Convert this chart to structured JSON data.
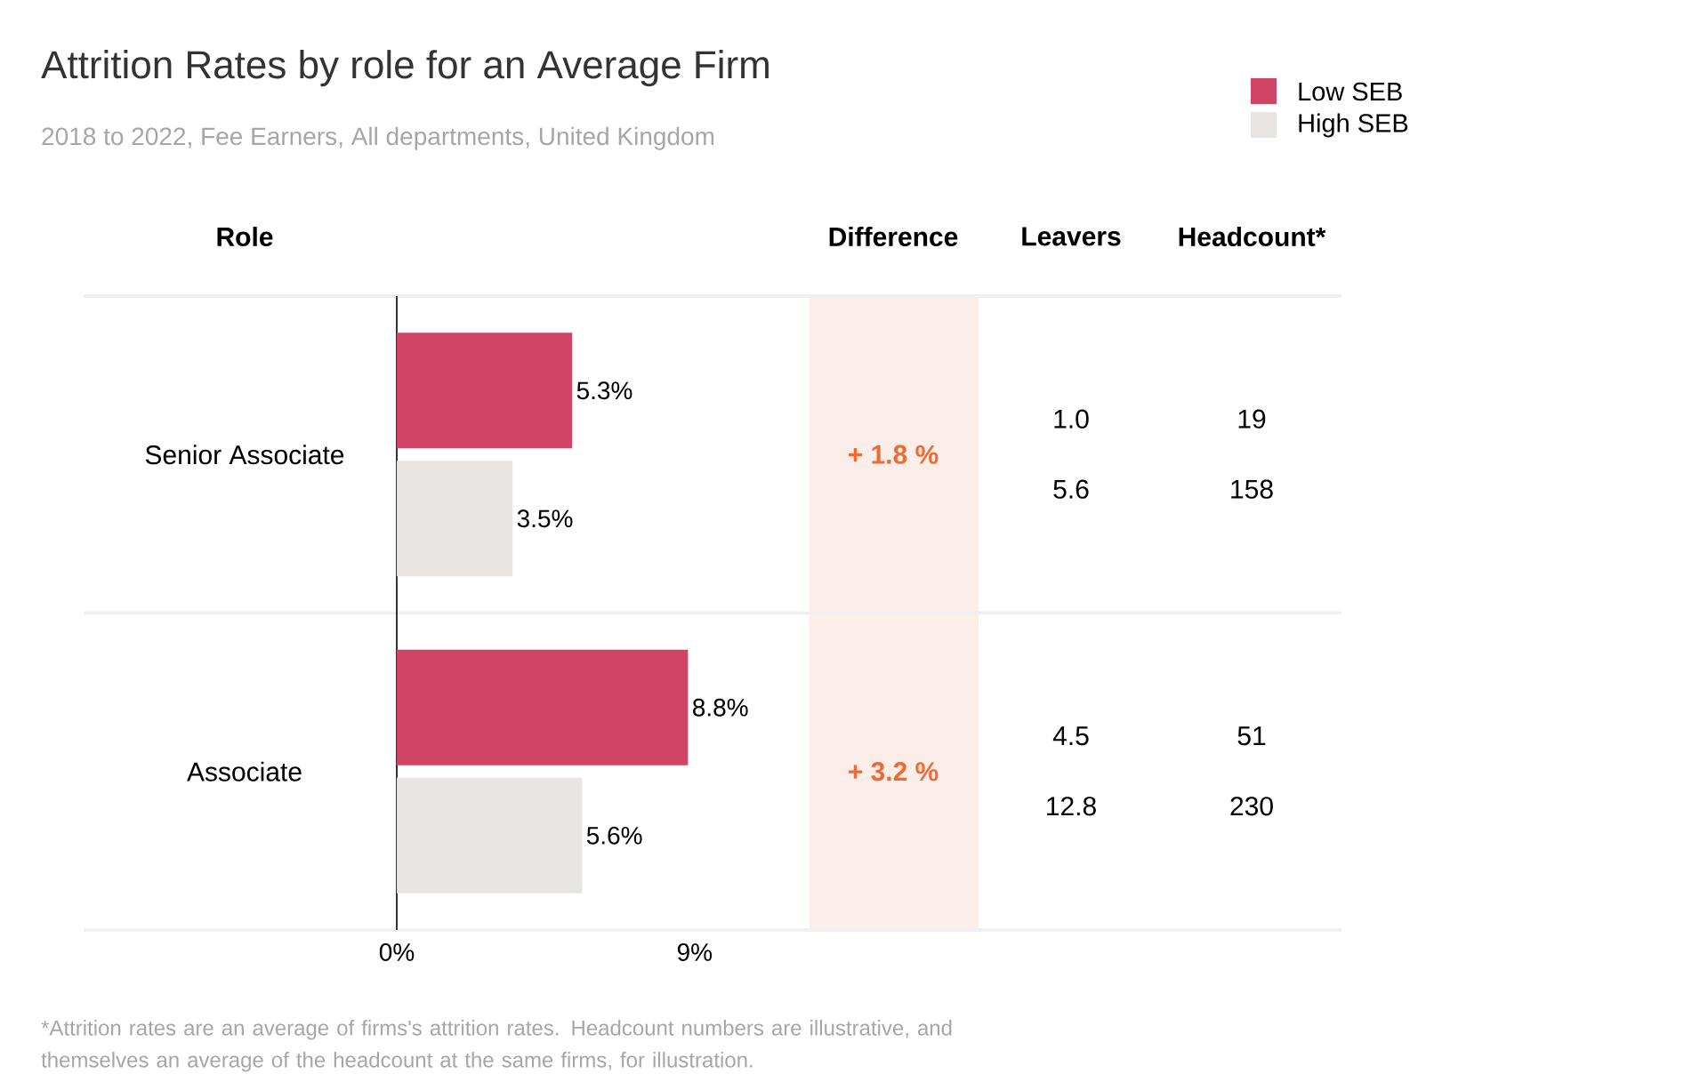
{
  "chart_data": {
    "type": "bar",
    "orientation": "horizontal",
    "title": "Attrition Rates by role for an Average Firm",
    "subtitle": "2018 to 2022, Fee Earners, All departments, United Kingdom",
    "ylabel": "Role",
    "categories": [
      "Senior Associate",
      "Associate"
    ],
    "series": [
      {
        "name": "Low SEB",
        "color": "#d04565",
        "values": [
          5.3,
          8.8
        ],
        "value_labels": [
          "5.3%",
          "8.8%"
        ]
      },
      {
        "name": "High SEB",
        "color": "#e8e4e1",
        "values": [
          3.5,
          5.6
        ],
        "value_labels": [
          "3.5%",
          "5.6%"
        ]
      }
    ],
    "xlim": [
      0,
      28.5
    ],
    "xticks": [
      {
        "value": 0,
        "label": "0%"
      },
      {
        "value": 9,
        "label": "9%"
      }
    ],
    "legend": "top right",
    "bands": [
      {
        "axis": "x",
        "from": 12.47,
        "to": 17.58,
        "color": "#fbeee8"
      }
    ],
    "annotations": [
      "Difference",
      "Leavers",
      "Headcount*",
      "+ 1.8 %",
      "1.0",
      "5.6",
      "19",
      "158",
      "+ 3.2 %",
      "4.5",
      "12.8",
      "51",
      "230",
      "*Attrition rates are an average of firms's attrition rates. Headcount numbers are illustrative, and themselves an average of the headcount at the same firms, for illustration."
    ]
  }
}
